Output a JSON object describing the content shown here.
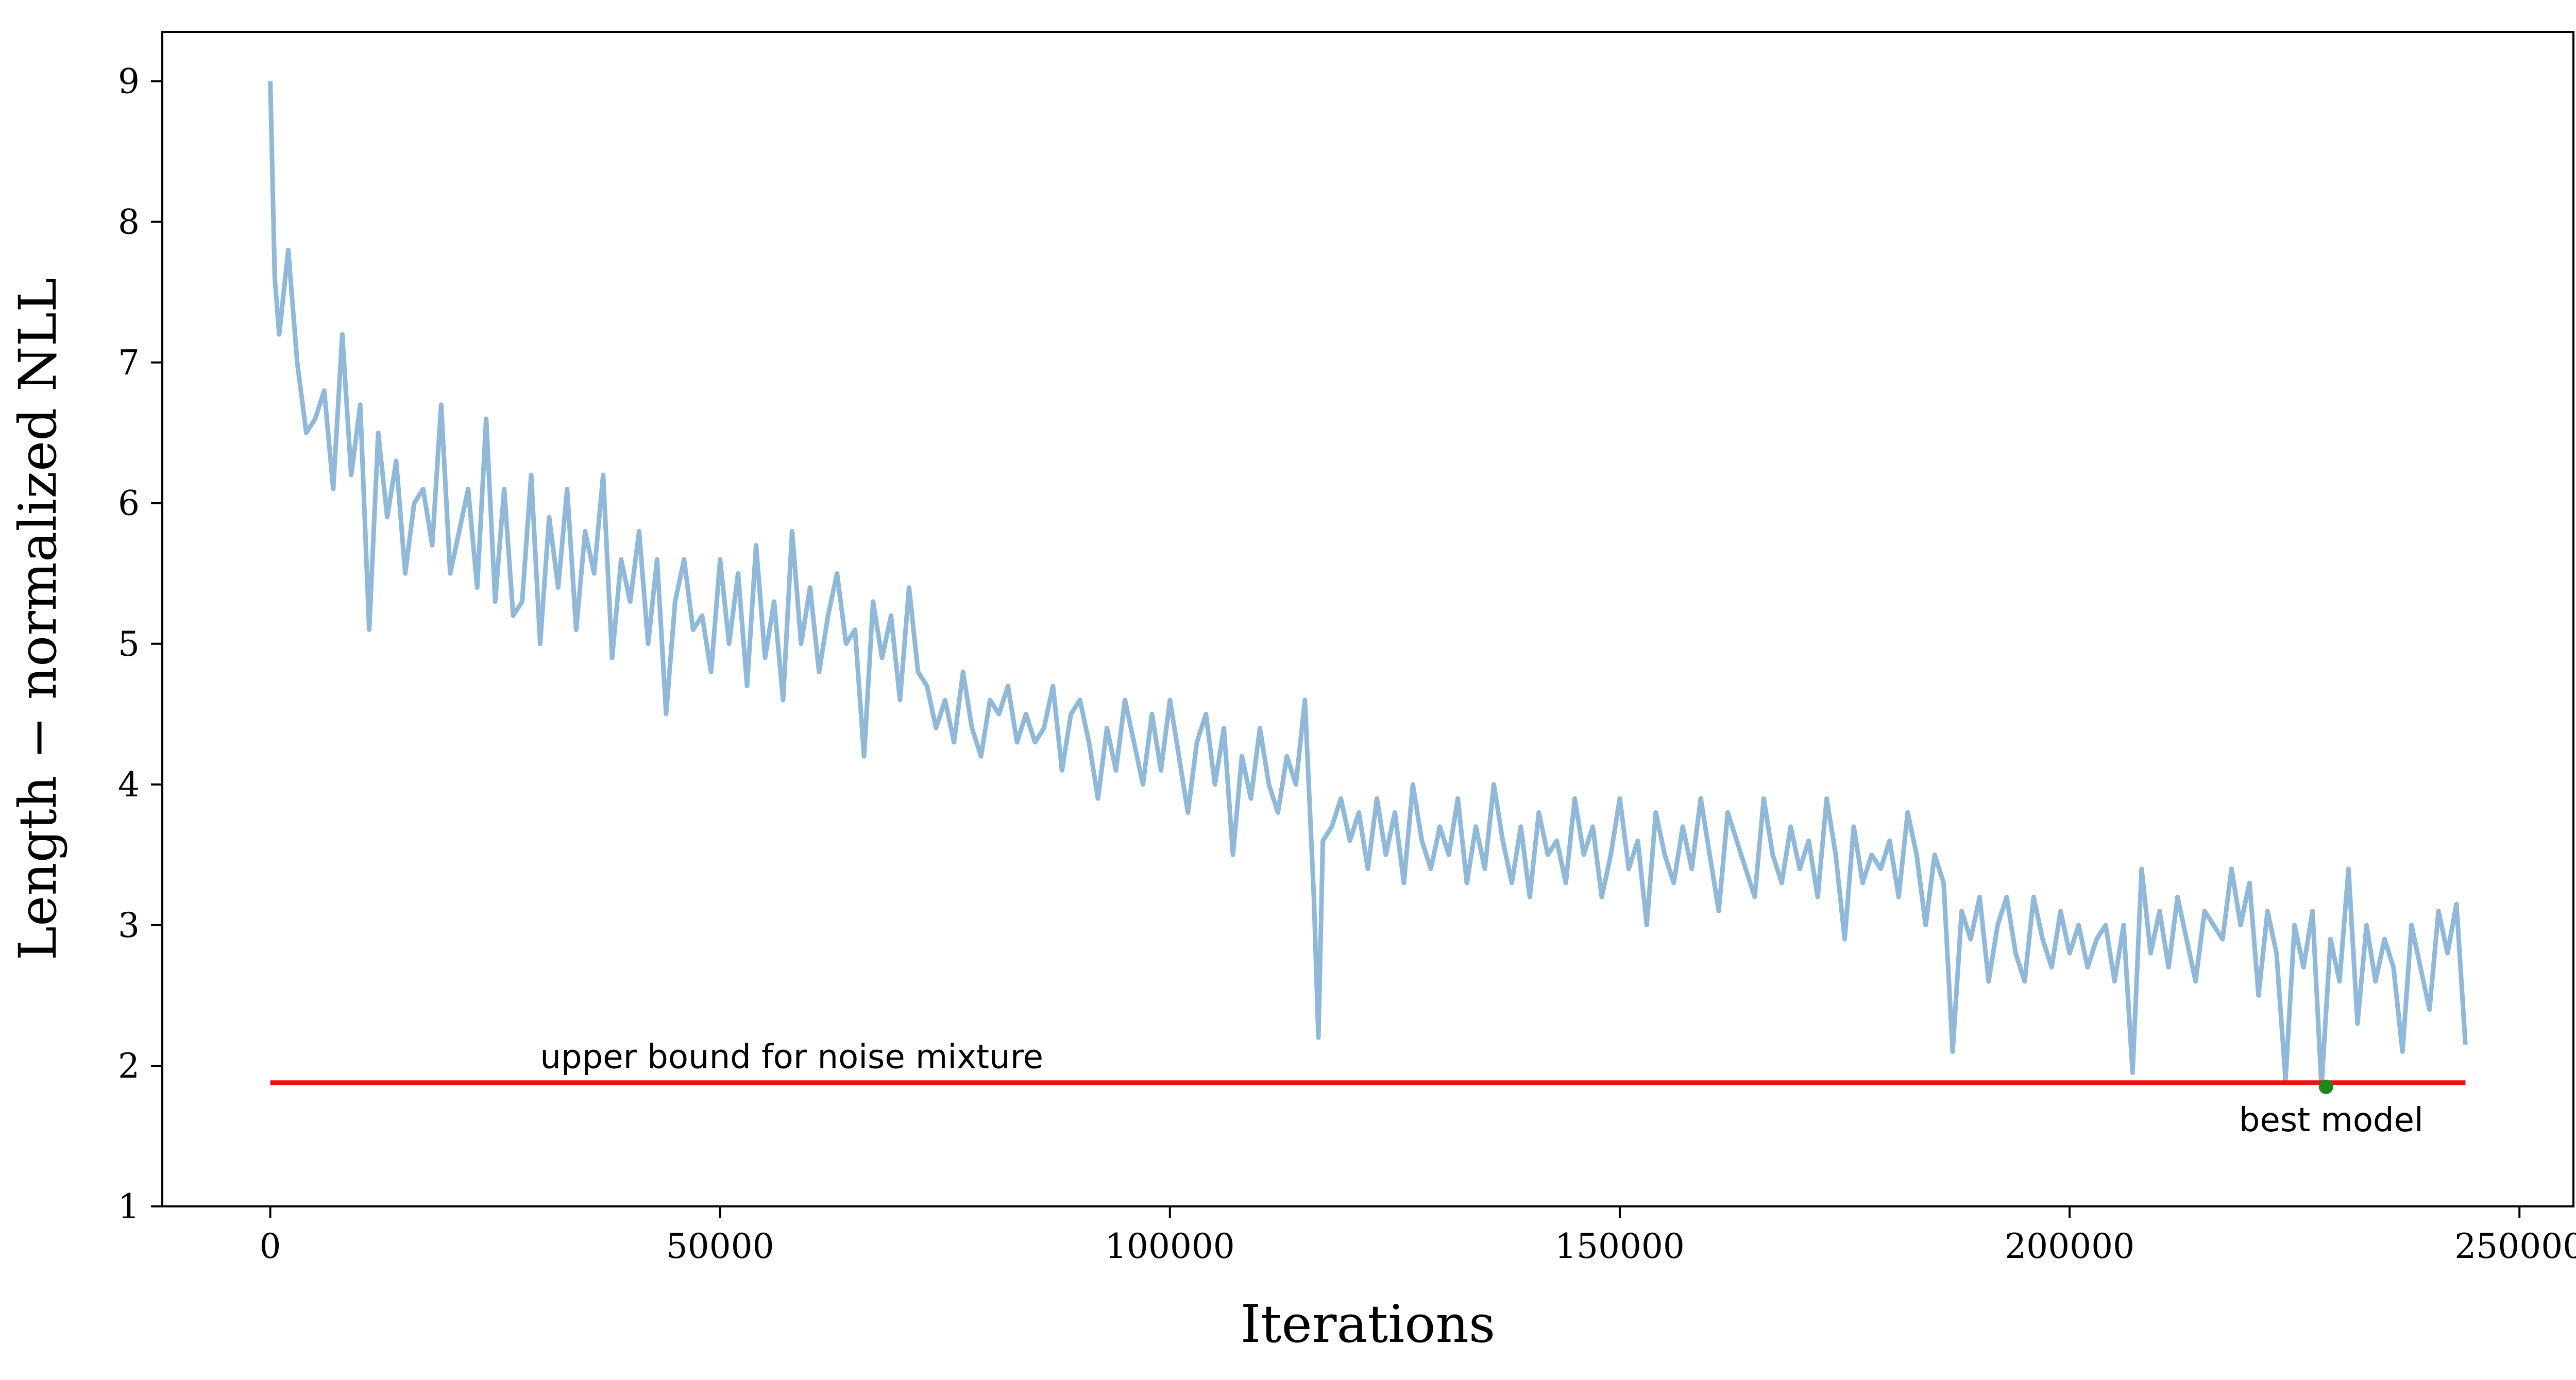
{
  "chart_data": {
    "type": "line",
    "title": "",
    "xlabel": "Iterations",
    "ylabel": "Length − normalized NLL",
    "xlim": [
      -12000,
      256000
    ],
    "ylim": [
      1,
      9.35
    ],
    "xticks": [
      0,
      50000,
      100000,
      150000,
      200000,
      250000
    ],
    "xtick_labels": [
      "0",
      "50000",
      "100000",
      "150000",
      "200000",
      "250000"
    ],
    "yticks": [
      1,
      2,
      3,
      4,
      5,
      6,
      7,
      8,
      9
    ],
    "ytick_labels": [
      "1",
      "2",
      "3",
      "4",
      "5",
      "6",
      "7",
      "8",
      "9"
    ],
    "grid": false,
    "legend": "none",
    "series": [
      {
        "color": "#8fb9da",
        "x": [
          0,
          500,
          1000,
          1500,
          2000,
          3000,
          4000,
          5000,
          6000,
          7000,
          8000,
          9000,
          10000,
          11000,
          12000,
          13000,
          14000,
          15000,
          16000,
          17000,
          18000,
          19000,
          20000,
          21000,
          22000,
          23000,
          24000,
          25000,
          26000,
          27000,
          28000,
          29000,
          30000,
          31000,
          32000,
          33000,
          34000,
          35000,
          36000,
          37000,
          38000,
          39000,
          40000,
          41000,
          42000,
          43000,
          44000,
          45000,
          46000,
          47000,
          48000,
          49000,
          50000,
          51000,
          52000,
          53000,
          54000,
          55000,
          56000,
          57000,
          58000,
          59000,
          60000,
          61000,
          62000,
          63000,
          64000,
          65000,
          66000,
          67000,
          68000,
          69000,
          70000,
          71000,
          72000,
          73000,
          74000,
          75000,
          76000,
          77000,
          78000,
          79000,
          80000,
          81000,
          82000,
          83000,
          84000,
          85000,
          86000,
          87000,
          88000,
          89000,
          90000,
          91000,
          92000,
          93000,
          94000,
          95000,
          96000,
          97000,
          98000,
          99000,
          100000,
          101000,
          102000,
          103000,
          104000,
          105000,
          106000,
          107000,
          108000,
          109000,
          110000,
          111000,
          112000,
          113000,
          114000,
          115000,
          116000,
          116500,
          117000,
          118000,
          119000,
          120000,
          121000,
          122000,
          123000,
          124000,
          125000,
          126000,
          127000,
          128000,
          129000,
          130000,
          131000,
          132000,
          133000,
          134000,
          135000,
          136000,
          137000,
          138000,
          139000,
          140000,
          141000,
          142000,
          143000,
          144000,
          145000,
          146000,
          147000,
          148000,
          149000,
          150000,
          151000,
          152000,
          153000,
          154000,
          155000,
          156000,
          157000,
          158000,
          159000,
          160000,
          161000,
          162000,
          163000,
          164000,
          165000,
          166000,
          167000,
          168000,
          169000,
          170000,
          171000,
          172000,
          173000,
          174000,
          175000,
          176000,
          177000,
          178000,
          179000,
          180000,
          181000,
          182000,
          183000,
          184000,
          185000,
          186000,
          187000,
          188000,
          189000,
          190000,
          191000,
          192000,
          193000,
          194000,
          195000,
          196000,
          197000,
          198000,
          199000,
          200000,
          201000,
          202000,
          203000,
          204000,
          205000,
          206000,
          207000,
          208000,
          209000,
          210000,
          211000,
          212000,
          213000,
          214000,
          215000,
          216000,
          217000,
          218000,
          219000,
          220000,
          221000,
          222000,
          223000,
          224000,
          225000,
          226000,
          227000,
          228000,
          229000,
          230000,
          231000,
          232000,
          233000,
          234000,
          235000,
          236000,
          237000,
          238000,
          239000,
          240000,
          241000,
          242000,
          243000,
          244000
        ],
        "y": [
          9.0,
          7.6,
          7.2,
          7.5,
          7.8,
          7.0,
          6.5,
          6.6,
          6.8,
          6.1,
          7.2,
          6.2,
          6.7,
          5.1,
          6.5,
          5.9,
          6.3,
          5.5,
          6.0,
          6.1,
          5.7,
          6.7,
          5.5,
          5.8,
          6.1,
          5.4,
          6.6,
          5.3,
          6.1,
          5.2,
          5.3,
          6.2,
          5.0,
          5.9,
          5.4,
          6.1,
          5.1,
          5.8,
          5.5,
          6.2,
          4.9,
          5.6,
          5.3,
          5.8,
          5.0,
          5.6,
          4.5,
          5.3,
          5.6,
          5.1,
          5.2,
          4.8,
          5.6,
          5.0,
          5.5,
          4.7,
          5.7,
          4.9,
          5.3,
          4.6,
          5.8,
          5.0,
          5.4,
          4.8,
          5.2,
          5.5,
          5.0,
          5.1,
          4.2,
          5.3,
          4.9,
          5.2,
          4.6,
          5.4,
          4.8,
          4.7,
          4.4,
          4.6,
          4.3,
          4.8,
          4.4,
          4.2,
          4.6,
          4.5,
          4.7,
          4.3,
          4.5,
          4.3,
          4.4,
          4.7,
          4.1,
          4.5,
          4.6,
          4.3,
          3.9,
          4.4,
          4.1,
          4.6,
          4.3,
          4.0,
          4.5,
          4.1,
          4.6,
          4.2,
          3.8,
          4.3,
          4.5,
          4.0,
          4.4,
          3.5,
          4.2,
          3.9,
          4.4,
          4.0,
          3.8,
          4.2,
          4.0,
          4.6,
          3.2,
          2.2,
          3.6,
          3.7,
          3.9,
          3.6,
          3.8,
          3.4,
          3.9,
          3.5,
          3.8,
          3.3,
          4.0,
          3.6,
          3.4,
          3.7,
          3.5,
          3.9,
          3.3,
          3.7,
          3.4,
          4.0,
          3.6,
          3.3,
          3.7,
          3.2,
          3.8,
          3.5,
          3.6,
          3.3,
          3.9,
          3.5,
          3.7,
          3.2,
          3.5,
          3.9,
          3.4,
          3.6,
          3.0,
          3.8,
          3.5,
          3.3,
          3.7,
          3.4,
          3.9,
          3.5,
          3.1,
          3.8,
          3.6,
          3.4,
          3.2,
          3.9,
          3.5,
          3.3,
          3.7,
          3.4,
          3.6,
          3.2,
          3.9,
          3.5,
          2.9,
          3.7,
          3.3,
          3.5,
          3.4,
          3.6,
          3.2,
          3.8,
          3.5,
          3.0,
          3.5,
          3.3,
          2.1,
          3.1,
          2.9,
          3.2,
          2.6,
          3.0,
          3.2,
          2.8,
          2.6,
          3.2,
          2.9,
          2.7,
          3.1,
          2.8,
          3.0,
          2.7,
          2.9,
          3.0,
          2.6,
          3.0,
          1.95,
          3.4,
          2.8,
          3.1,
          2.7,
          3.2,
          2.9,
          2.6,
          3.1,
          3.0,
          2.9,
          3.4,
          3.0,
          3.3,
          2.5,
          3.1,
          2.8,
          1.9,
          3.0,
          2.7,
          3.1,
          1.85,
          2.9,
          2.6,
          3.4,
          2.3,
          3.0,
          2.6,
          2.9,
          2.7,
          2.1,
          3.0,
          2.7,
          2.4,
          3.1,
          2.8,
          3.15,
          2.15
        ]
      }
    ],
    "reference_line": {
      "label": "upper bound for noise mixture",
      "y": 1.88,
      "x_start": 0,
      "x_end": 244000,
      "color": "#ee1111"
    },
    "best_point": {
      "label": "best model",
      "x": 228500,
      "y": 1.85,
      "color": "#1a8a1a"
    }
  }
}
